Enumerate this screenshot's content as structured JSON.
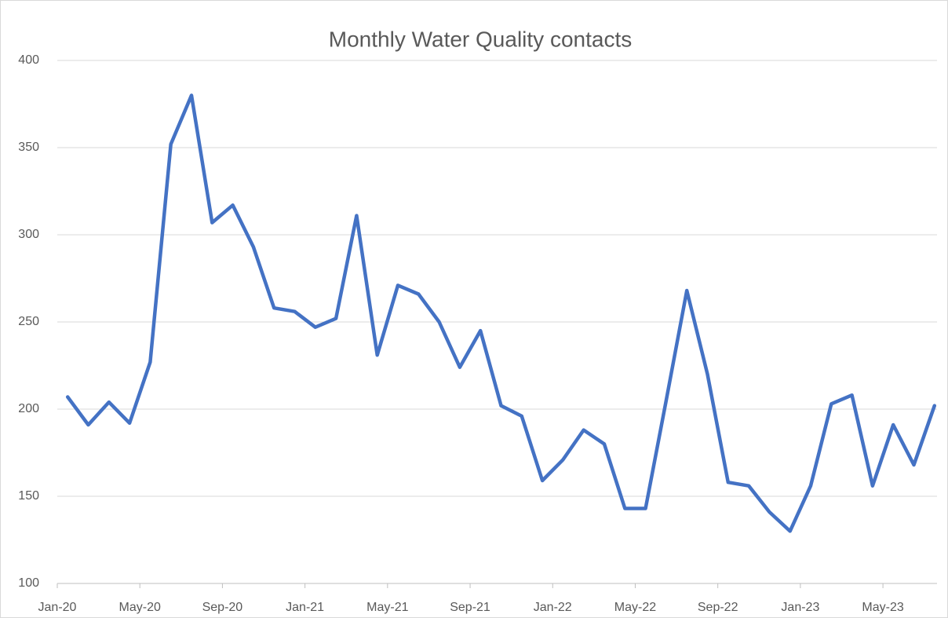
{
  "chart_data": {
    "type": "line",
    "title": "Monthly Water Quality contacts",
    "categories": [
      "Jan-20",
      null,
      null,
      null,
      "May-20",
      null,
      null,
      null,
      "Sep-20",
      null,
      null,
      null,
      "Jan-21",
      null,
      null,
      null,
      "May-21",
      null,
      null,
      null,
      "Sep-21",
      null,
      null,
      null,
      "Jan-22",
      null,
      null,
      null,
      "May-22",
      null,
      null,
      null,
      "Sep-22",
      null,
      null,
      null,
      "Jan-23",
      null,
      null,
      null,
      "May-23",
      null,
      null
    ],
    "series": [
      {
        "name": "Contacts",
        "color": "#4472c4",
        "values": [
          207,
          191,
          204,
          192,
          227,
          352,
          380,
          307,
          317,
          293,
          258,
          256,
          247,
          252,
          311,
          231,
          271,
          266,
          250,
          224,
          245,
          202,
          196,
          159,
          171,
          188,
          180,
          143,
          143,
          205,
          268,
          220,
          158,
          156,
          141,
          130,
          156,
          203,
          208,
          156,
          191,
          168,
          202
        ]
      }
    ],
    "ylim": [
      100,
      400
    ],
    "yticks": [
      100,
      150,
      200,
      250,
      300,
      350,
      400
    ],
    "grid": true
  }
}
